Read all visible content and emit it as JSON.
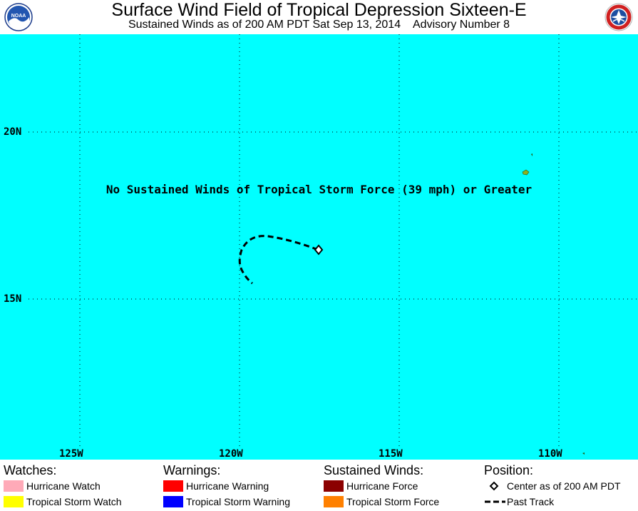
{
  "header": {
    "title": "Surface Wind Field of Tropical Depression Sixteen-E",
    "subtitle": "Sustained Winds as of 200 AM PDT Sat Sep 13, 2014    Advisory Number 8",
    "logo_left": "noaa-logo",
    "logo_right": "national-weather-service-logo",
    "logo_left_text": "NOAA"
  },
  "map": {
    "background_color": "#00ffff",
    "longitude_labels": [
      "125W",
      "120W",
      "115W",
      "110W"
    ],
    "latitude_labels": [
      "20N",
      "15N"
    ],
    "notice": "No Sustained Winds of Tropical Storm Force (39 mph) or Greater",
    "center_marker": "open-diamond",
    "past_track_style": "dashed-black",
    "land_color": "#8fb020"
  },
  "legend": {
    "watches": {
      "heading": "Watches:",
      "items": [
        {
          "label": "Hurricane Watch",
          "color": "#ffaab8"
        },
        {
          "label": "Tropical Storm Watch",
          "color": "#ffff00"
        }
      ]
    },
    "warnings": {
      "heading": "Warnings:",
      "items": [
        {
          "label": "Hurricane Warning",
          "color": "#ff0000"
        },
        {
          "label": "Tropical Storm Warning",
          "color": "#0000ff"
        }
      ]
    },
    "winds": {
      "heading": "Sustained Winds:",
      "items": [
        {
          "label": "Hurricane Force",
          "color": "#8b0000"
        },
        {
          "label": "Tropical Storm Force",
          "color": "#ff8000"
        }
      ]
    },
    "position": {
      "heading": "Position:",
      "items": [
        {
          "label": "Center as of 200 AM PDT",
          "icon": "diamond-icon"
        },
        {
          "label": "Past Track",
          "icon": "dashed-line-icon"
        }
      ]
    }
  }
}
